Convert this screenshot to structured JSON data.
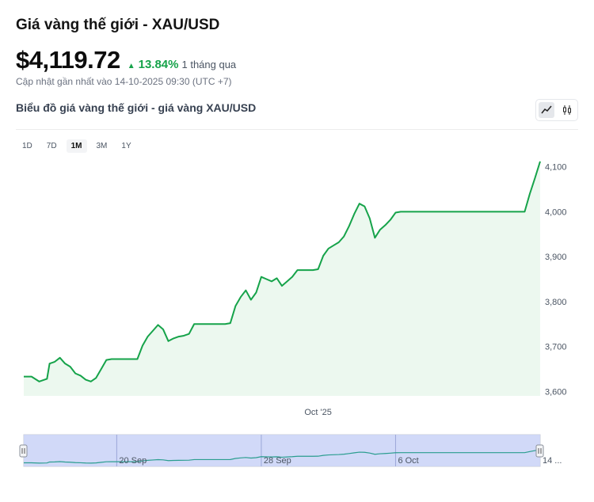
{
  "header": {
    "title": "Giá vàng thế giới - XAU/USD",
    "price": "$4,119.72",
    "change": "13.84%",
    "period": "1 tháng qua",
    "updated": "Cập nhật gần nhất vào 14-10-2025 09:30 (UTC +7)",
    "subtitle": "Biểu đồ giá vàng thế giới - giá vàng XAU/USD"
  },
  "colors": {
    "line": "#16a34a",
    "fill": "#ecf8ef",
    "navigator_mask": "#c9d2f7",
    "navigator_line": "#2a9d8f"
  },
  "icons": {
    "up": "triangle-up-icon",
    "line_chart": "line-chart-icon",
    "candlestick": "candlestick-icon"
  },
  "ranges": [
    "1D",
    "7D",
    "1M",
    "3M",
    "1Y"
  ],
  "active_range": "1M",
  "chart_data": {
    "type": "area",
    "y_ticks": [
      "4,100",
      "4,000",
      "3,900",
      "3,800",
      "3,700",
      "3,600"
    ],
    "y_tick_values": [
      4100,
      4000,
      3900,
      3800,
      3700,
      3600
    ],
    "ylim": [
      3590,
      4110
    ],
    "xlim": [
      0,
      100
    ],
    "x_ticks": [
      {
        "label": "Oct '25",
        "x": 57
      }
    ],
    "navigator_ticks": [
      {
        "label": "20 Sep",
        "x": 18
      },
      {
        "label": "28 Sep",
        "x": 46
      },
      {
        "label": "6 Oct",
        "x": 72
      },
      {
        "label": "14 ...",
        "x": 100
      }
    ],
    "x": [
      0,
      1.5,
      3,
      4.5,
      5,
      6,
      7,
      8,
      9,
      10,
      11,
      12,
      13,
      14,
      15,
      16,
      17,
      18,
      19,
      20,
      21,
      22,
      23,
      24,
      25,
      26,
      27,
      28,
      29,
      30,
      31,
      32,
      33,
      34,
      35,
      36,
      37,
      38,
      39,
      40,
      41,
      42,
      43,
      44,
      45,
      46,
      47,
      48,
      49,
      50,
      51,
      52,
      53,
      54,
      55,
      56,
      57,
      58,
      59,
      60,
      61,
      62,
      63,
      64,
      65,
      66,
      67,
      68,
      69,
      70,
      71,
      72,
      73,
      74,
      75,
      76,
      77,
      78,
      79,
      80,
      81,
      82,
      83,
      84,
      85,
      86,
      87,
      88,
      89,
      90,
      91,
      92,
      93,
      94,
      95,
      96,
      97,
      98,
      99,
      100
    ],
    "values": [
      3633,
      3633,
      3622,
      3628,
      3662,
      3666,
      3675,
      3662,
      3655,
      3640,
      3635,
      3626,
      3622,
      3630,
      3650,
      3670,
      3672,
      3672,
      3672,
      3672,
      3672,
      3672,
      3702,
      3722,
      3735,
      3748,
      3738,
      3712,
      3718,
      3722,
      3724,
      3728,
      3750,
      3750,
      3750,
      3750,
      3750,
      3750,
      3750,
      3752,
      3790,
      3810,
      3825,
      3804,
      3820,
      3855,
      3850,
      3845,
      3852,
      3835,
      3845,
      3855,
      3870,
      3870,
      3870,
      3870,
      3872,
      3902,
      3918,
      3925,
      3932,
      3945,
      3968,
      3995,
      4018,
      4012,
      3985,
      3942,
      3960,
      3970,
      3982,
      3998,
      4000,
      4000,
      4000,
      4000,
      4000,
      4000,
      4000,
      4000,
      4000,
      4000,
      4000,
      4000,
      4000,
      4000,
      4000,
      4000,
      4000,
      4000,
      4000,
      4000,
      4000,
      4000,
      4000,
      4000,
      4000,
      4040,
      4075,
      4112
    ]
  }
}
